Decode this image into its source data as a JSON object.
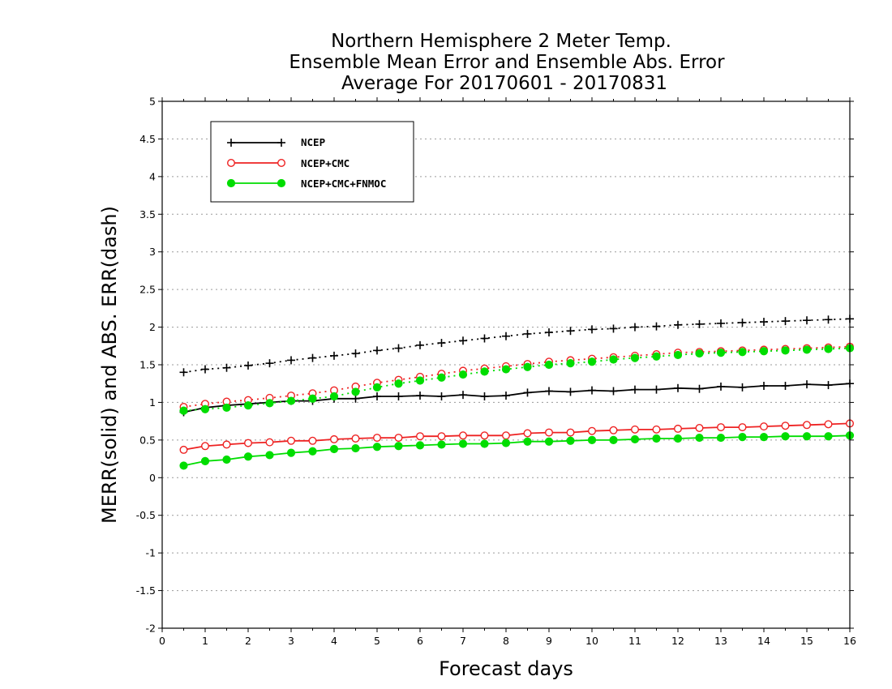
{
  "chart_data": {
    "type": "line",
    "title": [
      "Northern Hemisphere 2 Meter Temp.",
      "Ensemble Mean Error and Ensemble Abs. Error",
      "Average For 20170601 - 20170831"
    ],
    "xlabel": "Forecast days",
    "ylabel": "MERR(solid) and ABS. ERR(dash)",
    "xlim": [
      0,
      16
    ],
    "ylim": [
      -2,
      5
    ],
    "xticks": [
      "0",
      "1",
      "2",
      "3",
      "4",
      "5",
      "6",
      "7",
      "8",
      "9",
      "10",
      "11",
      "12",
      "13",
      "14",
      "15",
      "16"
    ],
    "yticks": [
      "-2",
      "-1.5",
      "-1",
      "-0.5",
      "0",
      "0.5",
      "1",
      "1.5",
      "2",
      "2.5",
      "3",
      "3.5",
      "4",
      "4.5",
      "5"
    ],
    "grid": "horizontal dotted",
    "legend_position": "top-left",
    "x": [
      0.5,
      1,
      1.5,
      2,
      2.5,
      3,
      3.5,
      4,
      4.5,
      5,
      5.5,
      6,
      6.5,
      7,
      7.5,
      8,
      8.5,
      9,
      9.5,
      10,
      10.5,
      11,
      11.5,
      12,
      12.5,
      13,
      13.5,
      14,
      14.5,
      15,
      15.5,
      16
    ],
    "series": [
      {
        "name": "NCEP",
        "color": "#000000",
        "marker": "plus",
        "merr": [
          0.87,
          0.93,
          0.96,
          0.98,
          1.0,
          1.02,
          1.02,
          1.05,
          1.05,
          1.08,
          1.08,
          1.09,
          1.08,
          1.1,
          1.08,
          1.09,
          1.13,
          1.15,
          1.14,
          1.16,
          1.15,
          1.17,
          1.17,
          1.19,
          1.18,
          1.21,
          1.2,
          1.22,
          1.22,
          1.24,
          1.23,
          1.25
        ],
        "abs_err": [
          1.4,
          1.44,
          1.46,
          1.49,
          1.52,
          1.56,
          1.59,
          1.62,
          1.65,
          1.69,
          1.72,
          1.76,
          1.79,
          1.82,
          1.85,
          1.88,
          1.91,
          1.93,
          1.95,
          1.97,
          1.98,
          2.0,
          2.01,
          2.03,
          2.04,
          2.05,
          2.06,
          2.07,
          2.08,
          2.09,
          2.1,
          2.11
        ]
      },
      {
        "name": "NCEP+CMC",
        "color": "#ee2222",
        "marker": "open-circle",
        "merr": [
          0.37,
          0.42,
          0.44,
          0.46,
          0.47,
          0.49,
          0.49,
          0.51,
          0.52,
          0.53,
          0.53,
          0.55,
          0.55,
          0.56,
          0.56,
          0.56,
          0.59,
          0.6,
          0.6,
          0.62,
          0.63,
          0.64,
          0.64,
          0.65,
          0.66,
          0.67,
          0.67,
          0.68,
          0.69,
          0.7,
          0.71,
          0.72
        ],
        "abs_err": [
          0.94,
          0.98,
          1.01,
          1.03,
          1.06,
          1.09,
          1.12,
          1.16,
          1.21,
          1.26,
          1.3,
          1.34,
          1.38,
          1.42,
          1.45,
          1.48,
          1.51,
          1.54,
          1.56,
          1.58,
          1.6,
          1.62,
          1.64,
          1.66,
          1.67,
          1.68,
          1.69,
          1.7,
          1.71,
          1.72,
          1.73,
          1.74
        ]
      },
      {
        "name": "NCEP+CMC+FNMOC",
        "color": "#00dd00",
        "marker": "filled-circle",
        "merr": [
          0.16,
          0.22,
          0.24,
          0.28,
          0.3,
          0.33,
          0.35,
          0.38,
          0.39,
          0.41,
          0.42,
          0.43,
          0.44,
          0.45,
          0.45,
          0.46,
          0.48,
          0.48,
          0.49,
          0.5,
          0.5,
          0.51,
          0.52,
          0.52,
          0.53,
          0.53,
          0.54,
          0.54,
          0.55,
          0.55,
          0.55,
          0.56
        ],
        "abs_err": [
          0.89,
          0.91,
          0.93,
          0.96,
          0.99,
          1.02,
          1.05,
          1.08,
          1.14,
          1.2,
          1.25,
          1.29,
          1.33,
          1.37,
          1.41,
          1.44,
          1.47,
          1.5,
          1.52,
          1.54,
          1.57,
          1.59,
          1.61,
          1.63,
          1.65,
          1.66,
          1.67,
          1.68,
          1.69,
          1.7,
          1.71,
          1.72
        ]
      }
    ]
  }
}
